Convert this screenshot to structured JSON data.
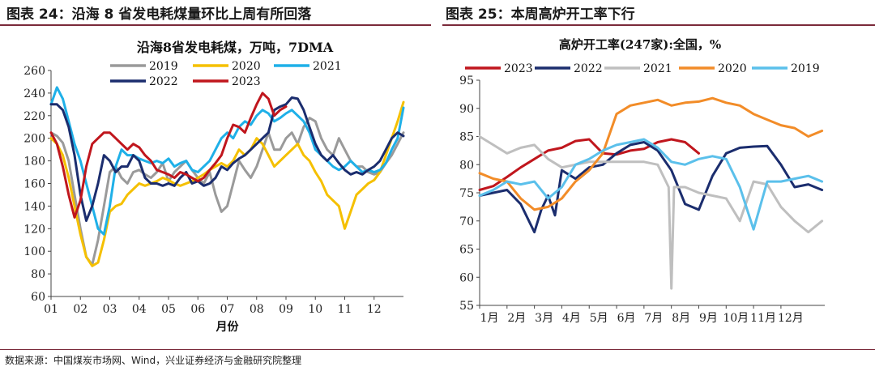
{
  "header_left": "图表 24：沿海 8 省发电耗煤量环比上周有所回落",
  "header_right": "图表 25：本周高炉开工率下行",
  "footer": "数据来源：中国煤炭市场网、Wind，兴业证券经济与金融研究院整理",
  "chart_data": [
    {
      "type": "line",
      "title": "沿海8省发电耗煤，万吨，7DMA",
      "xlabel": "月份",
      "x_ticks": [
        "01",
        "02",
        "03",
        "04",
        "05",
        "06",
        "07",
        "08",
        "09",
        "10",
        "11",
        "12"
      ],
      "ylim": [
        60,
        260
      ],
      "y_ticks": [
        60,
        80,
        100,
        120,
        140,
        160,
        180,
        200,
        220,
        240,
        260
      ],
      "grid": false,
      "legend": "top",
      "series": [
        {
          "name": "2019",
          "color": "#9a9a9a",
          "x": [
            0,
            0.2,
            0.4,
            0.6,
            0.8,
            1.0,
            1.2,
            1.4,
            1.6,
            1.8,
            2.0,
            2.2,
            2.4,
            2.6,
            2.8,
            3.0,
            3.2,
            3.4,
            3.6,
            3.8,
            4.0,
            4.2,
            4.4,
            4.6,
            4.8,
            5.0,
            5.2,
            5.4,
            5.6,
            5.8,
            6.0,
            6.2,
            6.4,
            6.6,
            6.8,
            7.0,
            7.2,
            7.4,
            7.6,
            7.8,
            8.0,
            8.2,
            8.4,
            8.6,
            8.8,
            9.0,
            9.2,
            9.4,
            9.6,
            9.8,
            10.0,
            10.2,
            10.4,
            10.6,
            10.8,
            11.0,
            11.2,
            11.4,
            11.6,
            11.8,
            12.0
          ],
          "values": [
            205,
            202,
            196,
            180,
            150,
            120,
            95,
            88,
            110,
            140,
            170,
            175,
            165,
            160,
            170,
            172,
            168,
            165,
            170,
            178,
            162,
            170,
            175,
            180,
            172,
            165,
            160,
            170,
            150,
            135,
            140,
            160,
            180,
            172,
            165,
            175,
            190,
            205,
            190,
            190,
            200,
            205,
            195,
            210,
            218,
            215,
            200,
            190,
            185,
            200,
            190,
            180,
            175,
            175,
            170,
            168,
            170,
            178,
            185,
            195,
            205
          ]
        },
        {
          "name": "2020",
          "color": "#f5c000",
          "x": [
            0,
            0.2,
            0.4,
            0.6,
            0.8,
            1.0,
            1.2,
            1.4,
            1.6,
            1.8,
            2.0,
            2.2,
            2.4,
            2.6,
            2.8,
            3.0,
            3.2,
            3.4,
            3.6,
            3.8,
            4.0,
            4.2,
            4.4,
            4.6,
            4.8,
            5.0,
            5.2,
            5.4,
            5.6,
            5.8,
            6.0,
            6.2,
            6.4,
            6.6,
            6.8,
            7.0,
            7.2,
            7.4,
            7.6,
            7.8,
            8.0,
            8.2,
            8.4,
            8.6,
            8.8,
            9.0,
            9.2,
            9.4,
            9.6,
            9.8,
            10.0,
            10.2,
            10.4,
            10.6,
            10.8,
            11.0,
            11.2,
            11.4,
            11.6,
            11.8,
            12.0
          ],
          "values": [
            200,
            195,
            185,
            165,
            140,
            115,
            95,
            87,
            90,
            110,
            135,
            140,
            142,
            150,
            155,
            160,
            158,
            160,
            162,
            165,
            163,
            160,
            158,
            160,
            162,
            165,
            168,
            172,
            175,
            178,
            175,
            180,
            190,
            185,
            190,
            200,
            195,
            185,
            175,
            180,
            185,
            190,
            195,
            185,
            180,
            170,
            162,
            150,
            145,
            140,
            120,
            135,
            150,
            155,
            160,
            163,
            170,
            185,
            200,
            215,
            232
          ]
        },
        {
          "name": "2021",
          "color": "#1fb0e8",
          "x": [
            0,
            0.2,
            0.4,
            0.6,
            0.8,
            1.0,
            1.2,
            1.4,
            1.6,
            1.8,
            2.0,
            2.2,
            2.4,
            2.6,
            2.8,
            3.0,
            3.2,
            3.4,
            3.6,
            3.8,
            4.0,
            4.2,
            4.4,
            4.6,
            4.8,
            5.0,
            5.2,
            5.4,
            5.6,
            5.8,
            6.0,
            6.2,
            6.4,
            6.6,
            6.8,
            7.0,
            7.2,
            7.4,
            7.6,
            7.8,
            8.0,
            8.2,
            8.4,
            8.6,
            8.8,
            9.0,
            9.2,
            9.4,
            9.6,
            9.8,
            10.0,
            10.2,
            10.4,
            10.6,
            10.8,
            11.0,
            11.2,
            11.4,
            11.6,
            11.8,
            12.0
          ],
          "values": [
            230,
            245,
            235,
            215,
            195,
            180,
            160,
            140,
            120,
            115,
            140,
            175,
            190,
            185,
            185,
            182,
            180,
            178,
            180,
            178,
            182,
            175,
            178,
            180,
            172,
            170,
            175,
            180,
            190,
            200,
            205,
            200,
            210,
            215,
            212,
            220,
            225,
            222,
            215,
            218,
            222,
            225,
            220,
            215,
            205,
            190,
            185,
            180,
            175,
            172,
            175,
            180,
            175,
            170,
            172,
            170,
            172,
            178,
            190,
            200,
            227
          ]
        },
        {
          "name": "2022",
          "color": "#1b2d6e",
          "x": [
            0,
            0.2,
            0.4,
            0.6,
            0.8,
            1.0,
            1.2,
            1.4,
            1.6,
            1.8,
            2.0,
            2.2,
            2.4,
            2.6,
            2.8,
            3.0,
            3.2,
            3.4,
            3.6,
            3.8,
            4.0,
            4.2,
            4.4,
            4.6,
            4.8,
            5.0,
            5.2,
            5.4,
            5.6,
            5.8,
            6.0,
            6.2,
            6.4,
            6.6,
            6.8,
            7.0,
            7.2,
            7.4,
            7.6,
            7.8,
            8.0,
            8.2,
            8.4,
            8.6,
            8.8,
            9.0,
            9.2,
            9.4,
            9.6,
            9.8,
            10.0,
            10.2,
            10.4,
            10.6,
            10.8,
            11.0,
            11.2,
            11.4,
            11.6,
            11.8,
            12.0
          ],
          "values": [
            230,
            230,
            225,
            210,
            185,
            150,
            127,
            140,
            160,
            185,
            180,
            170,
            175,
            175,
            185,
            180,
            165,
            160,
            160,
            158,
            160,
            158,
            165,
            170,
            160,
            162,
            158,
            160,
            165,
            175,
            172,
            178,
            182,
            185,
            190,
            195,
            200,
            205,
            225,
            228,
            230,
            236,
            235,
            225,
            210,
            195,
            185,
            180,
            185,
            178,
            172,
            168,
            170,
            168,
            172,
            175,
            180,
            190,
            200,
            205,
            202
          ]
        },
        {
          "name": "2023",
          "color": "#c0161d",
          "x": [
            0,
            0.2,
            0.4,
            0.6,
            0.8,
            1.0,
            1.2,
            1.4,
            1.6,
            1.8,
            2.0,
            2.2,
            2.4,
            2.6,
            2.8,
            3.0,
            3.2,
            3.4,
            3.6,
            3.8,
            4.0,
            4.2,
            4.4,
            4.6,
            4.8,
            5.0,
            5.2,
            5.4,
            5.6,
            5.8,
            6.0,
            6.2,
            6.4,
            6.6,
            6.8,
            7.0,
            7.2,
            7.4,
            7.6,
            7.8,
            8.0
          ],
          "values": [
            205,
            195,
            175,
            150,
            130,
            145,
            175,
            195,
            200,
            205,
            205,
            200,
            195,
            190,
            195,
            192,
            185,
            180,
            172,
            170,
            168,
            165,
            170,
            168,
            165,
            162,
            165,
            172,
            178,
            185,
            200,
            212,
            210,
            205,
            218,
            230,
            240,
            235,
            220,
            225,
            228
          ]
        }
      ]
    },
    {
      "type": "line",
      "title": "高炉开工率(247家):全国，%",
      "x_ticks": [
        "1月",
        "2月",
        "3月",
        "4月",
        "5月",
        "6月",
        "7月",
        "8月",
        "9月",
        "10月",
        "11月",
        "12月"
      ],
      "ylim": [
        55,
        95
      ],
      "y_ticks": [
        55,
        60,
        65,
        70,
        75,
        80,
        85,
        90,
        95
      ],
      "grid": false,
      "legend": "top",
      "series": [
        {
          "name": "2023",
          "color": "#c0161d",
          "x": [
            0,
            0.5,
            1.0,
            1.5,
            2.0,
            2.5,
            3.0,
            3.5,
            4.0,
            4.5,
            5.0,
            5.5,
            6.0,
            6.5,
            7.0,
            7.5,
            8.0
          ],
          "values": [
            75.5,
            76.2,
            77.8,
            79.5,
            81.0,
            82.5,
            83.0,
            84.2,
            84.5,
            82.0,
            81.8,
            82.5,
            82.8,
            84.0,
            84.5,
            84.0,
            82.0
          ]
        },
        {
          "name": "2022",
          "color": "#1b2d6e",
          "x": [
            0,
            0.5,
            1.0,
            1.5,
            2.0,
            2.25,
            2.5,
            2.75,
            3.0,
            3.5,
            4.0,
            4.5,
            5.0,
            5.5,
            6.0,
            6.5,
            7.0,
            7.5,
            8.0,
            8.5,
            9.0,
            9.5,
            10.0,
            10.5,
            11.0,
            11.5,
            12.0,
            12.5
          ],
          "values": [
            74.5,
            75.0,
            75.5,
            73.0,
            68.0,
            72.0,
            74.5,
            71.0,
            79.0,
            77.5,
            79.5,
            80.0,
            82.0,
            83.5,
            84.0,
            82.5,
            79.0,
            73.0,
            72.0,
            78.0,
            82.0,
            83.0,
            83.2,
            83.3,
            80.0,
            76.0,
            76.5,
            75.5
          ]
        },
        {
          "name": "2021",
          "color": "#bfbfbf",
          "x": [
            0,
            0.5,
            1.0,
            1.5,
            2.0,
            2.5,
            3.0,
            3.5,
            4.0,
            4.5,
            5.0,
            5.5,
            6.0,
            6.5,
            6.9,
            7.0,
            7.1,
            7.5,
            8.0,
            8.5,
            9.0,
            9.5,
            10.0,
            10.5,
            11.0,
            11.5,
            12.0,
            12.5
          ],
          "values": [
            85.0,
            83.5,
            82.0,
            83.0,
            83.5,
            81.0,
            79.5,
            80.0,
            80.5,
            80.5,
            80.5,
            80.5,
            80.5,
            80.0,
            76.0,
            58.0,
            76.0,
            76.0,
            75.0,
            74.5,
            74.0,
            70.0,
            77.0,
            76.5,
            72.5,
            70.0,
            68.0,
            70.0
          ]
        },
        {
          "name": "2020",
          "color": "#f28c28",
          "x": [
            0,
            0.5,
            1.0,
            1.5,
            2.0,
            2.5,
            3.0,
            3.5,
            4.0,
            4.5,
            5.0,
            5.5,
            6.0,
            6.5,
            7.0,
            7.5,
            8.0,
            8.5,
            9.0,
            9.5,
            10.0,
            10.5,
            11.0,
            11.5,
            12.0,
            12.5
          ],
          "values": [
            78.5,
            77.5,
            77.0,
            74.0,
            72.0,
            72.5,
            74.0,
            77.0,
            79.0,
            82.0,
            89.0,
            90.5,
            91.0,
            91.5,
            90.5,
            91.0,
            91.2,
            91.8,
            91.0,
            90.5,
            89.0,
            88.0,
            87.0,
            86.5,
            85.0,
            86.0
          ]
        },
        {
          "name": "2019",
          "color": "#5bc0eb",
          "x": [
            0,
            0.5,
            1.0,
            1.5,
            2.0,
            2.5,
            3.0,
            3.5,
            4.0,
            4.5,
            5.0,
            5.5,
            6.0,
            6.5,
            7.0,
            7.5,
            8.0,
            8.5,
            9.0,
            9.5,
            10.0,
            10.5,
            11.0,
            11.5,
            12.0,
            12.5
          ],
          "values": [
            74.5,
            75.5,
            77.0,
            76.5,
            77.0,
            74.0,
            76.0,
            80.0,
            81.0,
            82.5,
            83.5,
            84.0,
            84.5,
            83.0,
            80.5,
            80.0,
            81.0,
            81.5,
            81.0,
            76.0,
            68.5,
            77.0,
            77.0,
            77.5,
            78.0,
            77.0
          ]
        }
      ]
    }
  ]
}
